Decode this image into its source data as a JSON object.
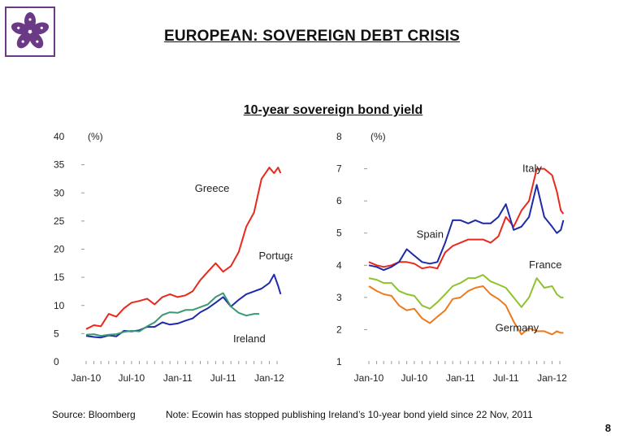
{
  "title": "EUROPEAN: SOVEREIGN DEBT CRISIS",
  "subtitle": "10-year sovereign bond yield",
  "logo_icon": "bauhinia-flower-logo-icon",
  "colors": {
    "accent": "#6b3a87",
    "greece": "#e8291c",
    "portugal": "#1d2ca6",
    "ireland": "#3a9a72",
    "italy": "#e8291c",
    "spain": "#1d2ca6",
    "france": "#8fc22e",
    "germany": "#ef7a1c"
  },
  "footer": {
    "source": "Source: Bloomberg",
    "note": "Note:  Ecowin has stopped publishing Ireland’s 10-year bond yield since 22 Nov, 2011",
    "page": "8"
  },
  "chart_data": [
    {
      "type": "line",
      "unit_label": "(%)",
      "x_ticks": [
        "Jan-10",
        "Jul-10",
        "Jan-11",
        "Jul-11",
        "Jan-12"
      ],
      "xlim": [
        "2010-01-01",
        "2012-03-01"
      ],
      "ylim": [
        0,
        40
      ],
      "y_ticks": [
        0,
        5,
        10,
        15,
        20,
        25,
        30,
        35,
        40
      ],
      "series": [
        {
          "name": "Greece",
          "x": [
            "2010-01-01",
            "2010-02-01",
            "2010-03-01",
            "2010-04-01",
            "2010-05-01",
            "2010-06-01",
            "2010-07-01",
            "2010-08-01",
            "2010-09-01",
            "2010-10-01",
            "2010-11-01",
            "2010-12-01",
            "2011-01-01",
            "2011-02-01",
            "2011-03-01",
            "2011-04-01",
            "2011-05-01",
            "2011-06-01",
            "2011-07-01",
            "2011-08-01",
            "2011-09-01",
            "2011-10-01",
            "2011-11-01",
            "2011-12-01",
            "2012-01-01",
            "2012-01-20",
            "2012-02-05",
            "2012-02-15"
          ],
          "values": [
            5.8,
            6.5,
            6.3,
            8.5,
            8.0,
            9.5,
            10.5,
            10.8,
            11.2,
            10.2,
            11.5,
            12.0,
            11.5,
            11.8,
            12.5,
            14.5,
            16.0,
            17.5,
            16.0,
            17.0,
            19.5,
            24.0,
            26.5,
            32.5,
            34.5,
            33.5,
            34.5,
            33.5
          ]
        },
        {
          "name": "Portugal",
          "x": [
            "2010-01-01",
            "2010-02-01",
            "2010-03-01",
            "2010-04-01",
            "2010-05-01",
            "2010-06-01",
            "2010-07-01",
            "2010-08-01",
            "2010-09-01",
            "2010-10-01",
            "2010-11-01",
            "2010-12-01",
            "2011-01-01",
            "2011-02-01",
            "2011-03-01",
            "2011-04-01",
            "2011-05-01",
            "2011-06-01",
            "2011-07-01",
            "2011-08-01",
            "2011-09-01",
            "2011-10-01",
            "2011-11-01",
            "2011-12-01",
            "2012-01-01",
            "2012-01-20",
            "2012-02-05",
            "2012-02-15"
          ],
          "values": [
            4.6,
            4.4,
            4.3,
            4.7,
            4.5,
            5.5,
            5.4,
            5.6,
            6.2,
            6.2,
            7.0,
            6.6,
            6.8,
            7.3,
            7.7,
            8.8,
            9.5,
            10.5,
            11.5,
            9.8,
            11.0,
            12.0,
            12.5,
            13.0,
            14.0,
            15.5,
            13.5,
            12.0
          ]
        },
        {
          "name": "Ireland",
          "x": [
            "2010-01-01",
            "2010-02-01",
            "2010-03-01",
            "2010-04-01",
            "2010-05-01",
            "2010-06-01",
            "2010-07-01",
            "2010-08-01",
            "2010-09-01",
            "2010-10-01",
            "2010-11-01",
            "2010-12-01",
            "2011-01-01",
            "2011-02-01",
            "2011-03-01",
            "2011-04-01",
            "2011-05-01",
            "2011-06-01",
            "2011-07-01",
            "2011-08-01",
            "2011-09-01",
            "2011-10-01",
            "2011-11-01",
            "2011-11-22"
          ],
          "values": [
            4.8,
            4.9,
            4.6,
            4.8,
            4.9,
            5.3,
            5.5,
            5.4,
            6.3,
            7.0,
            8.3,
            8.8,
            8.7,
            9.2,
            9.2,
            9.7,
            10.2,
            11.5,
            12.2,
            9.8,
            8.7,
            8.2,
            8.5,
            8.5
          ]
        }
      ],
      "annotations": [
        "Greece",
        "Portugal",
        "Ireland"
      ]
    },
    {
      "type": "line",
      "unit_label": "(%)",
      "x_ticks": [
        "Jan-10",
        "Jul-10",
        "Jan-11",
        "Jul-11",
        "Jan-12"
      ],
      "xlim": [
        "2010-01-01",
        "2012-03-01"
      ],
      "ylim": [
        1,
        8
      ],
      "y_ticks": [
        1,
        2,
        3,
        4,
        5,
        6,
        7,
        8
      ],
      "series": [
        {
          "name": "Italy",
          "x": [
            "2010-01-01",
            "2010-02-01",
            "2010-03-01",
            "2010-04-01",
            "2010-05-01",
            "2010-06-01",
            "2010-07-01",
            "2010-08-01",
            "2010-09-01",
            "2010-10-01",
            "2010-11-01",
            "2010-12-01",
            "2011-01-01",
            "2011-02-01",
            "2011-03-01",
            "2011-04-01",
            "2011-05-01",
            "2011-06-01",
            "2011-07-01",
            "2011-08-01",
            "2011-09-01",
            "2011-10-01",
            "2011-11-01",
            "2011-12-01",
            "2012-01-01",
            "2012-01-20",
            "2012-02-05",
            "2012-02-15"
          ],
          "values": [
            4.1,
            4.0,
            3.95,
            4.0,
            4.1,
            4.1,
            4.05,
            3.9,
            3.95,
            3.9,
            4.4,
            4.6,
            4.7,
            4.8,
            4.8,
            4.8,
            4.7,
            4.9,
            5.5,
            5.2,
            5.7,
            6.0,
            7.0,
            7.0,
            6.8,
            6.3,
            5.7,
            5.6
          ]
        },
        {
          "name": "Spain",
          "x": [
            "2010-01-01",
            "2010-02-01",
            "2010-03-01",
            "2010-04-01",
            "2010-05-01",
            "2010-06-01",
            "2010-07-01",
            "2010-08-01",
            "2010-09-01",
            "2010-10-01",
            "2010-11-01",
            "2010-12-01",
            "2011-01-01",
            "2011-02-01",
            "2011-03-01",
            "2011-04-01",
            "2011-05-01",
            "2011-06-01",
            "2011-07-01",
            "2011-08-01",
            "2011-09-01",
            "2011-10-01",
            "2011-11-01",
            "2011-12-01",
            "2012-01-01",
            "2012-01-20",
            "2012-02-05",
            "2012-02-15"
          ],
          "values": [
            4.0,
            3.95,
            3.85,
            3.95,
            4.1,
            4.5,
            4.3,
            4.1,
            4.05,
            4.1,
            4.7,
            5.4,
            5.4,
            5.3,
            5.4,
            5.3,
            5.3,
            5.5,
            5.9,
            5.1,
            5.2,
            5.5,
            6.5,
            5.5,
            5.2,
            5.0,
            5.1,
            5.4
          ]
        },
        {
          "name": "France",
          "x": [
            "2010-01-01",
            "2010-02-01",
            "2010-03-01",
            "2010-04-01",
            "2010-05-01",
            "2010-06-01",
            "2010-07-01",
            "2010-08-01",
            "2010-09-01",
            "2010-10-01",
            "2010-11-01",
            "2010-12-01",
            "2011-01-01",
            "2011-02-01",
            "2011-03-01",
            "2011-04-01",
            "2011-05-01",
            "2011-06-01",
            "2011-07-01",
            "2011-08-01",
            "2011-09-01",
            "2011-10-01",
            "2011-11-01",
            "2011-12-01",
            "2012-01-01",
            "2012-01-20",
            "2012-02-05",
            "2012-02-15"
          ],
          "values": [
            3.6,
            3.55,
            3.45,
            3.45,
            3.2,
            3.1,
            3.05,
            2.75,
            2.65,
            2.85,
            3.1,
            3.35,
            3.45,
            3.6,
            3.6,
            3.7,
            3.5,
            3.4,
            3.3,
            3.0,
            2.7,
            3.0,
            3.6,
            3.3,
            3.35,
            3.1,
            3.0,
            3.0
          ]
        },
        {
          "name": "Germany",
          "x": [
            "2010-01-01",
            "2010-02-01",
            "2010-03-01",
            "2010-04-01",
            "2010-05-01",
            "2010-06-01",
            "2010-07-01",
            "2010-08-01",
            "2010-09-01",
            "2010-10-01",
            "2010-11-01",
            "2010-12-01",
            "2011-01-01",
            "2011-02-01",
            "2011-03-01",
            "2011-04-01",
            "2011-05-01",
            "2011-06-01",
            "2011-07-01",
            "2011-08-01",
            "2011-09-01",
            "2011-10-01",
            "2011-11-01",
            "2011-12-01",
            "2012-01-01",
            "2012-01-20",
            "2012-02-05",
            "2012-02-15"
          ],
          "values": [
            3.35,
            3.2,
            3.1,
            3.05,
            2.75,
            2.6,
            2.65,
            2.35,
            2.2,
            2.4,
            2.6,
            2.95,
            3.0,
            3.2,
            3.3,
            3.35,
            3.1,
            2.95,
            2.75,
            2.25,
            1.85,
            2.05,
            1.95,
            1.95,
            1.85,
            1.95,
            1.9,
            1.9
          ]
        }
      ],
      "annotations": [
        "Italy",
        "Spain",
        "France",
        "Germany"
      ]
    }
  ]
}
